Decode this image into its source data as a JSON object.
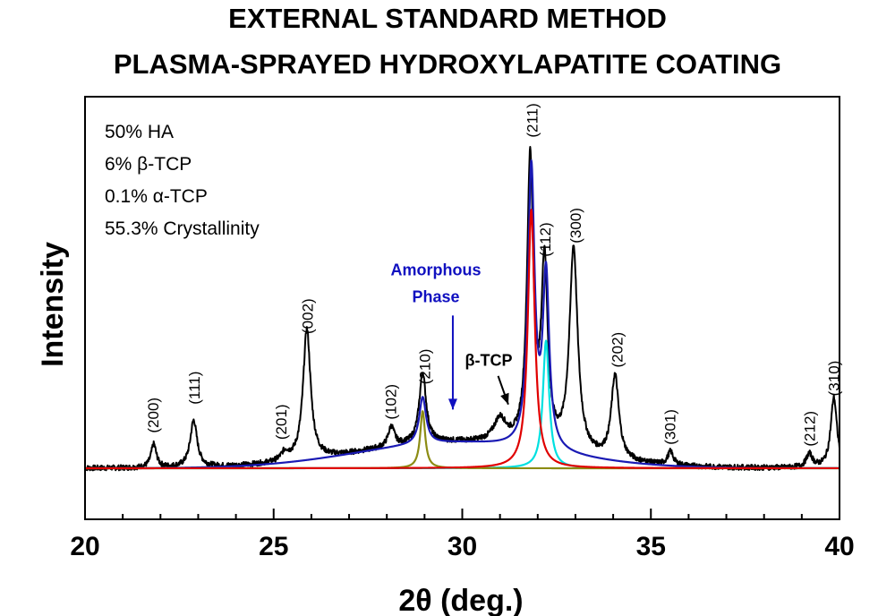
{
  "chart_data": {
    "type": "line",
    "title": [
      "EXTERNAL STANDARD METHOD",
      "PLASMA-SPRAYED HYDROXYLAPATITE COATING"
    ],
    "xlabel": "2θ (deg.)",
    "ylabel": "Intensity",
    "xlim": [
      20,
      40
    ],
    "ylim": [
      0,
      100
    ],
    "x_ticks": [
      20,
      25,
      30,
      35,
      40
    ],
    "grid": false,
    "y_ticks_shown": false,
    "legend": null,
    "stats": [
      "50% HA",
      "6% β-TCP",
      "0.1% α-TCP",
      "55.3% Crystallinity"
    ],
    "annotations": [
      {
        "text": "Amorphous",
        "x": 29.3,
        "y": 57.5,
        "color": "#1010c0"
      },
      {
        "text": "Phase",
        "x": 29.3,
        "y": 49.5,
        "color": "#1010c0"
      },
      {
        "text": "β-TCP",
        "x": 30.7,
        "y": 30.5,
        "color": "#000000"
      }
    ],
    "arrows": [
      {
        "from_x": 29.75,
        "from_y": 45.5,
        "to_x": 29.75,
        "to_y": 17.5,
        "color": "#1010c0"
      },
      {
        "from_x": 30.95,
        "from_y": 27.5,
        "to_x": 31.22,
        "to_y": 19.0,
        "color": "#000000"
      }
    ],
    "peak_labels": [
      {
        "text": "(200)",
        "x": 21.8,
        "y": 10.5
      },
      {
        "text": "(111)",
        "x": 22.9,
        "y": 19.0
      },
      {
        "text": "(201)",
        "x": 25.2,
        "y": 8.5
      },
      {
        "text": "(002)",
        "x": 25.9,
        "y": 40.0
      },
      {
        "text": "(102)",
        "x": 28.1,
        "y": 14.5
      },
      {
        "text": "(210)",
        "x": 29.0,
        "y": 25.0
      },
      {
        "text": "(211)",
        "x": 31.85,
        "y": 98.5
      },
      {
        "text": "(112)",
        "x": 32.2,
        "y": 63.0
      },
      {
        "text": "(300)",
        "x": 33.0,
        "y": 67.0
      },
      {
        "text": "(202)",
        "x": 34.1,
        "y": 30.0
      },
      {
        "text": "(301)",
        "x": 35.5,
        "y": 7.0
      },
      {
        "text": "(212)",
        "x": 39.2,
        "y": 6.5
      },
      {
        "text": "(310)",
        "x": 39.85,
        "y": 21.5
      }
    ],
    "baseline": 0,
    "series": [
      {
        "kind": "measured",
        "color": "#000000",
        "background": 14,
        "noise": 0.8,
        "peaks": [
          {
            "center": 21.82,
            "height": 7,
            "width": 0.085
          },
          {
            "center": 22.88,
            "height": 14,
            "width": 0.11
          },
          {
            "center": 25.3,
            "height": 2.5,
            "width": 0.12
          },
          {
            "center": 25.88,
            "height": 39,
            "width": 0.12
          },
          {
            "center": 28.12,
            "height": 6,
            "width": 0.1
          },
          {
            "center": 28.95,
            "height": 21,
            "width": 0.11
          },
          {
            "center": 31.0,
            "height": 7,
            "width": 0.2
          },
          {
            "center": 31.8,
            "height": 85,
            "width": 0.1
          },
          {
            "center": 32.18,
            "height": 54,
            "width": 0.1
          },
          {
            "center": 32.95,
            "height": 61,
            "width": 0.13
          },
          {
            "center": 34.05,
            "height": 25,
            "width": 0.12
          },
          {
            "center": 35.52,
            "height": 4,
            "width": 0.09
          },
          {
            "center": 39.2,
            "height": 4,
            "width": 0.1
          },
          {
            "center": 39.85,
            "height": 21,
            "width": 0.1
          }
        ],
        "hump": {
          "center": 29.8,
          "height": 7.5,
          "width": 2.6
        }
      },
      {
        "kind": "amorphous-fit",
        "color": "#1a1ab4",
        "background": 14,
        "hump": {
          "center": 29.8,
          "height": 7.5,
          "width": 2.6
        },
        "peaks": [
          {
            "center": 28.95,
            "height": 14,
            "width": 0.11
          },
          {
            "center": 31.83,
            "height": 83,
            "width": 0.105
          },
          {
            "center": 32.22,
            "height": 51,
            "width": 0.1
          }
        ]
      },
      {
        "kind": "hydroxylapatite-fit",
        "color": "#e00000",
        "background": 14,
        "peaks": [
          {
            "center": 31.83,
            "height": 77,
            "width": 0.11
          }
        ]
      },
      {
        "kind": "beta-tcp-fit",
        "color": "#00e0e0",
        "background": 14,
        "peaks": [
          {
            "center": 32.22,
            "height": 38,
            "width": 0.1
          }
        ]
      },
      {
        "kind": "alpha-tcp-fit",
        "color": "#8c8c14",
        "background": 14,
        "peaks": [
          {
            "center": 28.95,
            "height": 17,
            "width": 0.08
          }
        ]
      }
    ]
  }
}
